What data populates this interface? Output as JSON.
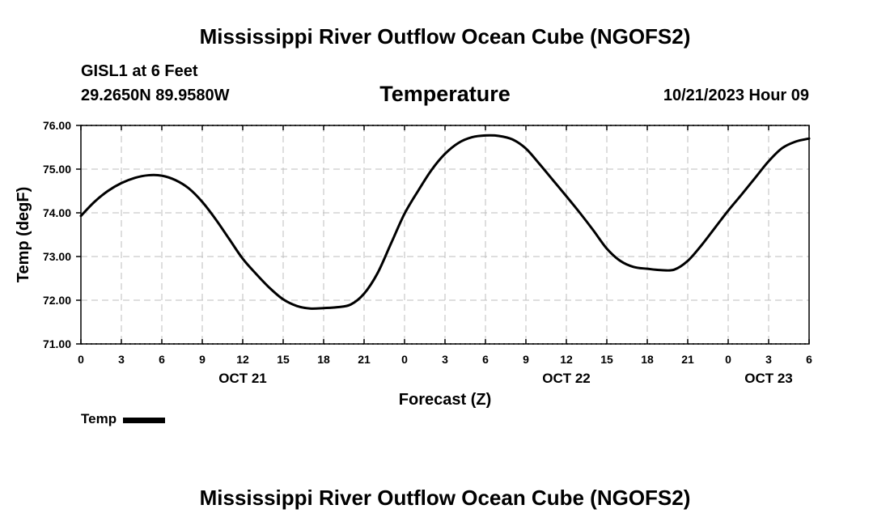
{
  "page": {
    "title": "Mississippi River Outflow Ocean Cube (NGOFS2)",
    "footer_title": "Mississippi River Outflow Ocean Cube (NGOFS2)",
    "station": "GISL1 at 6 Feet",
    "coordinates": "29.2650N  89.9580W",
    "run_time": "10/21/2023 Hour 09"
  },
  "chart_data": {
    "type": "line",
    "title": "Temperature",
    "xlabel": "Forecast (Z)",
    "ylabel": "Temp (degF)",
    "ylim": [
      71,
      76
    ],
    "xlim": [
      0,
      54
    ],
    "y_ticks": [
      "71.00",
      "72.00",
      "73.00",
      "74.00",
      "75.00",
      "76.00"
    ],
    "x_ticks": [
      {
        "hour": 0,
        "label": "0"
      },
      {
        "hour": 3,
        "label": "3"
      },
      {
        "hour": 6,
        "label": "6"
      },
      {
        "hour": 9,
        "label": "9"
      },
      {
        "hour": 12,
        "label": "12"
      },
      {
        "hour": 15,
        "label": "15"
      },
      {
        "hour": 18,
        "label": "18"
      },
      {
        "hour": 21,
        "label": "21"
      },
      {
        "hour": 24,
        "label": "0"
      },
      {
        "hour": 27,
        "label": "3"
      },
      {
        "hour": 30,
        "label": "6"
      },
      {
        "hour": 33,
        "label": "9"
      },
      {
        "hour": 36,
        "label": "12"
      },
      {
        "hour": 39,
        "label": "15"
      },
      {
        "hour": 42,
        "label": "18"
      },
      {
        "hour": 45,
        "label": "21"
      },
      {
        "hour": 48,
        "label": "0"
      },
      {
        "hour": 51,
        "label": "3"
      },
      {
        "hour": 54,
        "label": "6"
      }
    ],
    "date_labels": [
      {
        "hour": 12,
        "label": "OCT 21"
      },
      {
        "hour": 36,
        "label": "OCT 22"
      },
      {
        "hour": 51,
        "label": "OCT 23"
      }
    ],
    "grid": true,
    "legend": "bottom-left",
    "series": [
      {
        "name": "Temp",
        "color": "#000000",
        "x": [
          0,
          1,
          2,
          3,
          4,
          5,
          6,
          7,
          8,
          9,
          10,
          11,
          12,
          13,
          14,
          15,
          16,
          17,
          18,
          19,
          20,
          21,
          22,
          23,
          24,
          25,
          26,
          27,
          28,
          29,
          30,
          31,
          32,
          33,
          34,
          35,
          36,
          37,
          38,
          39,
          40,
          41,
          42,
          43,
          44,
          45,
          46,
          47,
          48,
          49,
          50,
          51,
          52,
          53,
          54
        ],
        "values": [
          73.93,
          74.25,
          74.5,
          74.68,
          74.8,
          74.86,
          74.85,
          74.75,
          74.56,
          74.25,
          73.85,
          73.4,
          72.95,
          72.6,
          72.28,
          72.02,
          71.87,
          71.81,
          71.82,
          71.84,
          71.9,
          72.15,
          72.62,
          73.3,
          73.98,
          74.5,
          74.98,
          75.35,
          75.6,
          75.73,
          75.77,
          75.76,
          75.68,
          75.47,
          75.12,
          74.75,
          74.38,
          74.0,
          73.6,
          73.18,
          72.9,
          72.76,
          72.72,
          72.69,
          72.7,
          72.9,
          73.25,
          73.65,
          74.05,
          74.42,
          74.8,
          75.18,
          75.48,
          75.63,
          75.7
        ]
      }
    ]
  }
}
